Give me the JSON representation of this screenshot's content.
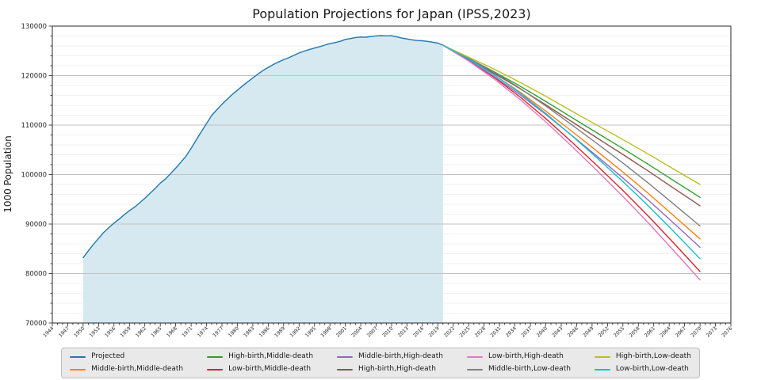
{
  "chart_data": {
    "type": "line",
    "title": "Population Projections for Japan (IPSS,2023)",
    "xlabel": "",
    "ylabel": "1000 Population",
    "xlim": [
      1944,
      2076
    ],
    "ylim": [
      70000,
      130000
    ],
    "x_tick_start": 1944,
    "x_tick_step": 3,
    "x_minor_step": 1,
    "y_tick_step": 10000,
    "y_minor_step": 2000,
    "grid": "horizontal-only",
    "historical_fill_color": "#d6e9f0",
    "historical_fill_range": [
      1950,
      2020
    ],
    "series": [
      {
        "name": "Projected",
        "color": "#1f77b4",
        "filled": true,
        "x": [
          1950,
          1951,
          1952,
          1953,
          1954,
          1955,
          1956,
          1957,
          1958,
          1959,
          1960,
          1961,
          1962,
          1963,
          1964,
          1965,
          1966,
          1967,
          1968,
          1969,
          1970,
          1971,
          1972,
          1973,
          1974,
          1975,
          1976,
          1977,
          1978,
          1979,
          1980,
          1981,
          1982,
          1983,
          1984,
          1985,
          1986,
          1987,
          1988,
          1989,
          1990,
          1991,
          1992,
          1993,
          1994,
          1995,
          1996,
          1997,
          1998,
          1999,
          2000,
          2001,
          2002,
          2003,
          2004,
          2005,
          2006,
          2007,
          2008,
          2009,
          2010,
          2011,
          2012,
          2013,
          2014,
          2015,
          2016,
          2017,
          2018,
          2019,
          2020
        ],
        "y": [
          83200,
          84600,
          85900,
          87100,
          88300,
          89276,
          90200,
          91000,
          91900,
          92700,
          93419,
          94300,
          95200,
          96200,
          97200,
          98275,
          99100,
          100200,
          101300,
          102500,
          103720,
          105300,
          107000,
          108700,
          110300,
          111940,
          113100,
          114200,
          115200,
          116200,
          117060,
          117900,
          118730,
          119540,
          120310,
          121049,
          121660,
          122240,
          122750,
          123210,
          123611,
          124100,
          124570,
          124940,
          125270,
          125570,
          125860,
          126160,
          126470,
          126670,
          126926,
          127320,
          127490,
          127690,
          127790,
          127768,
          127900,
          128030,
          128084,
          128030,
          128057,
          127830,
          127590,
          127410,
          127240,
          127095,
          127040,
          126920,
          126750,
          126560,
          126146
        ]
      },
      {
        "name": "Middle-birth,Middle-death",
        "color": "#ff7f0e",
        "x": [
          2020,
          2025,
          2030,
          2035,
          2040,
          2045,
          2050,
          2055,
          2060,
          2065,
          2070
        ],
        "y": [
          126146,
          123262,
          120116,
          116639,
          112837,
          108801,
          104686,
          100508,
          96148,
          91592,
          86996
        ]
      },
      {
        "name": "High-birth,Middle-death",
        "color": "#2ca02c",
        "x": [
          2020,
          2025,
          2030,
          2035,
          2040,
          2045,
          2050,
          2055,
          2060,
          2065,
          2070
        ],
        "y": [
          126146,
          123473,
          120755,
          117864,
          114777,
          111572,
          108395,
          105255,
          102026,
          98689,
          95396
        ]
      },
      {
        "name": "Low-birth,Middle-death",
        "color": "#d62728",
        "x": [
          2020,
          2025,
          2030,
          2035,
          2040,
          2045,
          2050,
          2055,
          2060,
          2065,
          2070
        ],
        "y": [
          126146,
          123096,
          119614,
          115677,
          111313,
          106624,
          101771,
          96778,
          91529,
          86016,
          80396
        ]
      },
      {
        "name": "Middle-birth,High-death",
        "color": "#9467bd",
        "x": [
          2020,
          2025,
          2030,
          2035,
          2040,
          2045,
          2050,
          2055,
          2060,
          2065,
          2070
        ],
        "y": [
          126146,
          123092,
          119776,
          116129,
          112157,
          107951,
          103666,
          99318,
          94788,
          90062,
          85296
        ]
      },
      {
        "name": "High-birth,High-death",
        "color": "#8c564b",
        "x": [
          2020,
          2025,
          2030,
          2035,
          2040,
          2045,
          2050,
          2055,
          2060,
          2065,
          2070
        ],
        "y": [
          126146,
          123303,
          120415,
          117354,
          114097,
          110722,
          107375,
          104065,
          100666,
          97159,
          93696
        ]
      },
      {
        "name": "Low-birth,High-death",
        "color": "#e377c2",
        "x": [
          2020,
          2025,
          2030,
          2035,
          2040,
          2045,
          2050,
          2055,
          2060,
          2065,
          2070
        ],
        "y": [
          126146,
          122926,
          119274,
          115167,
          110633,
          105774,
          100751,
          95588,
          90169,
          84486,
          78696
        ]
      },
      {
        "name": "Middle-birth,Low-death",
        "color": "#7f7f7f",
        "x": [
          2020,
          2025,
          2030,
          2035,
          2040,
          2045,
          2050,
          2055,
          2060,
          2065,
          2070
        ],
        "y": [
          126146,
          123522,
          120636,
          117419,
          113877,
          110101,
          106246,
          102328,
          98228,
          93932,
          89596
        ]
      },
      {
        "name": "High-birth,Low-death",
        "color": "#bcbd22",
        "x": [
          2020,
          2025,
          2030,
          2035,
          2040,
          2045,
          2050,
          2055,
          2060,
          2065,
          2070
        ],
        "y": [
          126146,
          123733,
          121275,
          118644,
          115817,
          112872,
          109955,
          107075,
          104106,
          101029,
          97996
        ]
      },
      {
        "name": "Low-birth,Low-death",
        "color": "#17becf",
        "x": [
          2020,
          2025,
          2030,
          2035,
          2040,
          2045,
          2050,
          2055,
          2060,
          2065,
          2070
        ],
        "y": [
          126146,
          123356,
          120134,
          116457,
          112353,
          107924,
          103331,
          98598,
          93609,
          88356,
          82996
        ]
      }
    ],
    "legend": {
      "position": "bottom",
      "columns": 5,
      "rows": 2,
      "items": [
        "Projected",
        "Middle-birth,Middle-death",
        "High-birth,Middle-death",
        "Low-birth,Middle-death",
        "Middle-birth,High-death",
        "High-birth,High-death",
        "Low-birth,High-death",
        "Middle-birth,Low-death",
        "High-birth,Low-death",
        "Low-birth,Low-death"
      ]
    }
  }
}
